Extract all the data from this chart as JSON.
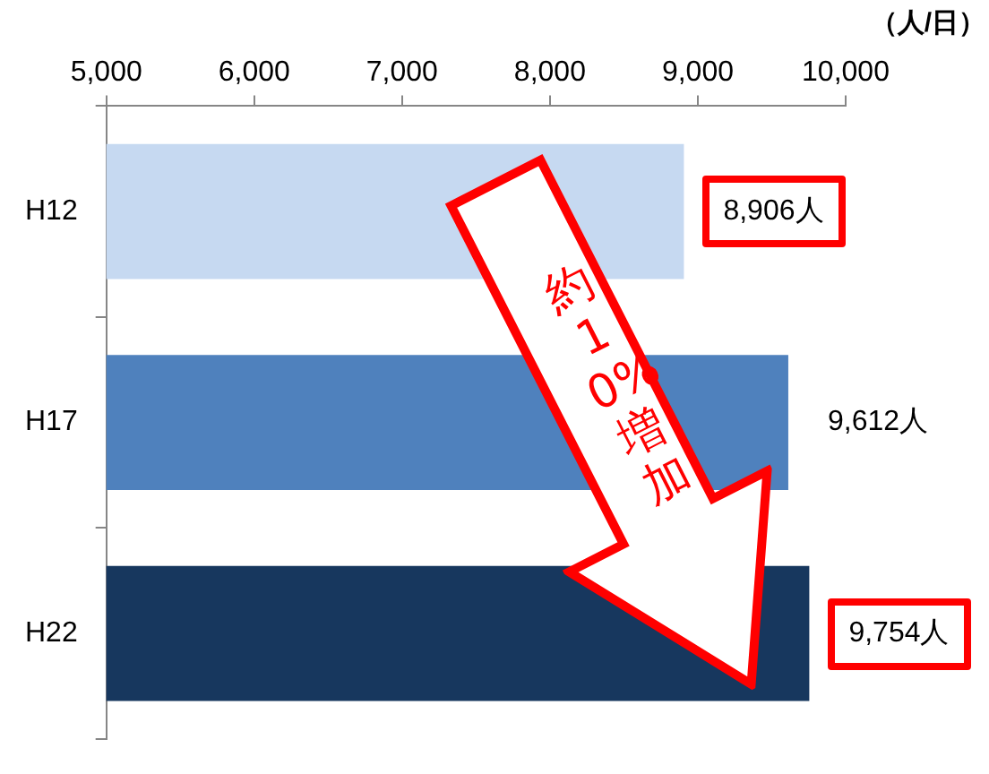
{
  "chart_data": {
    "type": "bar",
    "orientation": "horizontal",
    "xlabel": "（人/日）",
    "categories": [
      "H12",
      "H17",
      "H22"
    ],
    "values": [
      8906,
      9612,
      9754
    ],
    "colors": [
      "#c6d9f1",
      "#4f81bd",
      "#17375e"
    ],
    "value_labels": [
      "8,906人",
      "9,612人",
      "9,754人"
    ],
    "xlim": [
      5000,
      10000
    ],
    "xticks": [
      {
        "value": 5000,
        "label": "5,000"
      },
      {
        "value": 6000,
        "label": "6,000"
      },
      {
        "value": 7000,
        "label": "7,000"
      },
      {
        "value": 8000,
        "label": "8,000"
      },
      {
        "value": 9000,
        "label": "9,000"
      },
      {
        "value": 10000,
        "label": "10,000"
      }
    ],
    "grid": false,
    "legend": false,
    "annotations": [
      "約10%増加"
    ]
  }
}
